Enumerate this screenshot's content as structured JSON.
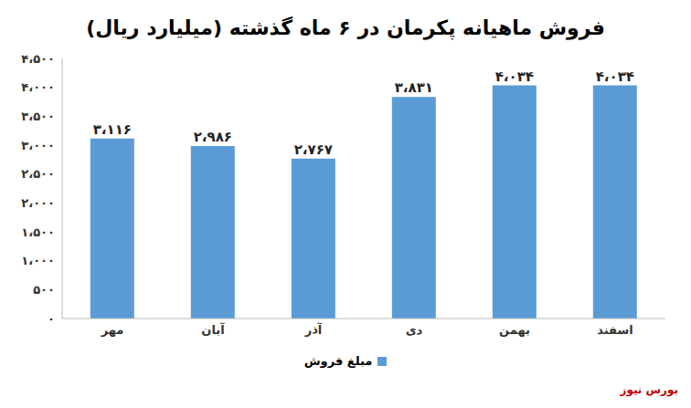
{
  "chart_data": {
    "type": "bar",
    "title": "فروش ماهیانه پکرمان در ۶ ماه گذشته (میلیارد ریال)",
    "categories": [
      "مهر",
      "آبان",
      "آذر",
      "دی",
      "بهمن",
      "اسفند"
    ],
    "series": [
      {
        "name": "مبلغ فروش",
        "color": "#5b9bd5",
        "values": [
          3116,
          2986,
          2767,
          3831,
          4034,
          4034
        ],
        "value_labels": [
          "۳،۱۱۶",
          "۲،۹۸۶",
          "۲،۷۶۷",
          "۳،۸۳۱",
          "۴،۰۳۴",
          "۴،۰۳۴"
        ]
      }
    ],
    "ylim": [
      0,
      4500
    ],
    "yticks": [
      {
        "value": 0,
        "label": "۰"
      },
      {
        "value": 500,
        "label": "۵۰۰"
      },
      {
        "value": 1000,
        "label": "۱،۰۰۰"
      },
      {
        "value": 1500,
        "label": "۱،۵۰۰"
      },
      {
        "value": 2000,
        "label": "۲،۰۰۰"
      },
      {
        "value": 2500,
        "label": "۲،۵۰۰"
      },
      {
        "value": 3000,
        "label": "۳،۰۰۰"
      },
      {
        "value": 3500,
        "label": "۳،۵۰۰"
      },
      {
        "value": 4000,
        "label": "۴،۰۰۰"
      },
      {
        "value": 4500,
        "label": "۴،۵۰۰"
      }
    ],
    "grid": false,
    "data_labels": true,
    "legend": "bottom",
    "source": "بورس نیوز"
  }
}
